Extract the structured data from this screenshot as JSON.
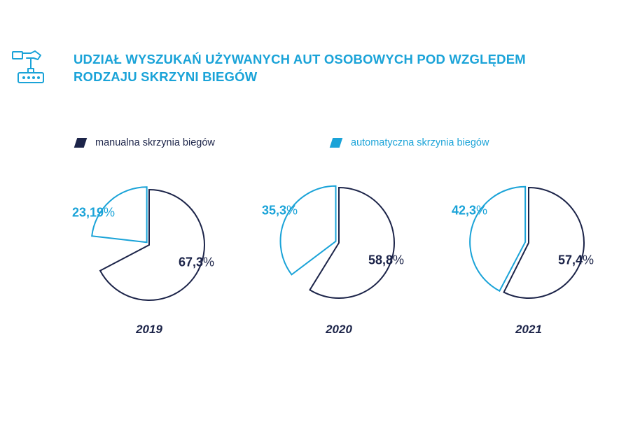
{
  "title": "UDZIAŁ WYSZUKAŃ UŻYWANYCH AUT OSOBOWYCH POD WZGLĘDEM RODZAJU SKRZYNI BIEGÓW",
  "header_icon": "gear-shift-icon",
  "colors": {
    "manual": "#1c2449",
    "automatic": "#1aa3d8"
  },
  "legend": [
    {
      "label": "manualna skrzynia biegów"
    },
    {
      "label": "automatyczna skrzynia biegów"
    }
  ],
  "chart_data": [
    {
      "type": "pie",
      "title": "2019",
      "slices": [
        {
          "label": "manualna skrzynia biegów",
          "value": 67.3,
          "display": "67,3"
        },
        {
          "label": "automatyczna skrzynia biegów",
          "value": 23.19,
          "display": "23,19"
        }
      ]
    },
    {
      "type": "pie",
      "title": "2020",
      "slices": [
        {
          "label": "manualna skrzynia biegów",
          "value": 58.8,
          "display": "58,8"
        },
        {
          "label": "automatyczna skrzynia biegów",
          "value": 35.3,
          "display": "35,3"
        }
      ]
    },
    {
      "type": "pie",
      "title": "2021",
      "slices": [
        {
          "label": "manualna skrzynia biegów",
          "value": 57.4,
          "display": "57,4"
        },
        {
          "label": "automatyczna skrzynia biegów",
          "value": 42.3,
          "display": "42,3"
        }
      ]
    }
  ]
}
